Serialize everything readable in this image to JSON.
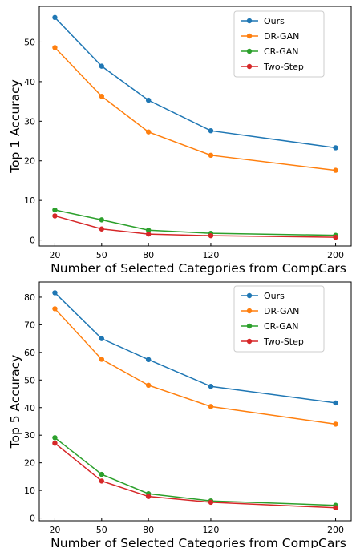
{
  "chart_data": [
    {
      "type": "line",
      "title": "",
      "xlabel": "Number of Selected Categories from CompCars",
      "ylabel": "Top 1 Accuracy",
      "x": [
        20,
        50,
        80,
        120,
        200
      ],
      "x_ticks": [
        "20",
        "50",
        "80",
        "120",
        "200"
      ],
      "y_ticks": [
        0,
        10,
        20,
        30,
        40,
        50
      ],
      "ylim": [
        -1.5,
        59
      ],
      "legend_position": "top-right",
      "grid": false,
      "series": [
        {
          "name": "Ours",
          "color": "#1f77b4",
          "values": [
            56.2,
            43.9,
            35.3,
            27.6,
            23.3
          ]
        },
        {
          "name": "DR-GAN",
          "color": "#ff7f0e",
          "values": [
            48.6,
            36.3,
            27.3,
            21.4,
            17.6
          ]
        },
        {
          "name": "CR-GAN",
          "color": "#2ca02c",
          "values": [
            7.6,
            5.1,
            2.5,
            1.7,
            1.2
          ]
        },
        {
          "name": "Two-Step",
          "color": "#d62728",
          "values": [
            6.1,
            2.8,
            1.5,
            1.1,
            0.7
          ]
        }
      ]
    },
    {
      "type": "line",
      "title": "",
      "xlabel": "Number of Selected Categories from CompCars",
      "ylabel": "Top 5 Accuracy",
      "x": [
        20,
        50,
        80,
        120,
        200
      ],
      "x_ticks": [
        "20",
        "50",
        "80",
        "120",
        "200"
      ],
      "y_ticks": [
        0,
        10,
        20,
        30,
        40,
        50,
        60,
        70,
        80
      ],
      "ylim": [
        -1.0,
        85.5
      ],
      "legend_position": "top-right",
      "grid": false,
      "series": [
        {
          "name": "Ours",
          "color": "#1f77b4",
          "values": [
            81.6,
            65.0,
            57.4,
            47.7,
            41.7
          ]
        },
        {
          "name": "DR-GAN",
          "color": "#ff7f0e",
          "values": [
            75.8,
            57.5,
            48.1,
            40.4,
            34.0
          ]
        },
        {
          "name": "CR-GAN",
          "color": "#2ca02c",
          "values": [
            29.1,
            15.8,
            8.8,
            6.2,
            4.6
          ]
        },
        {
          "name": "Two-Step",
          "color": "#d62728",
          "values": [
            27.1,
            13.4,
            7.8,
            5.7,
            3.7
          ]
        }
      ]
    }
  ]
}
